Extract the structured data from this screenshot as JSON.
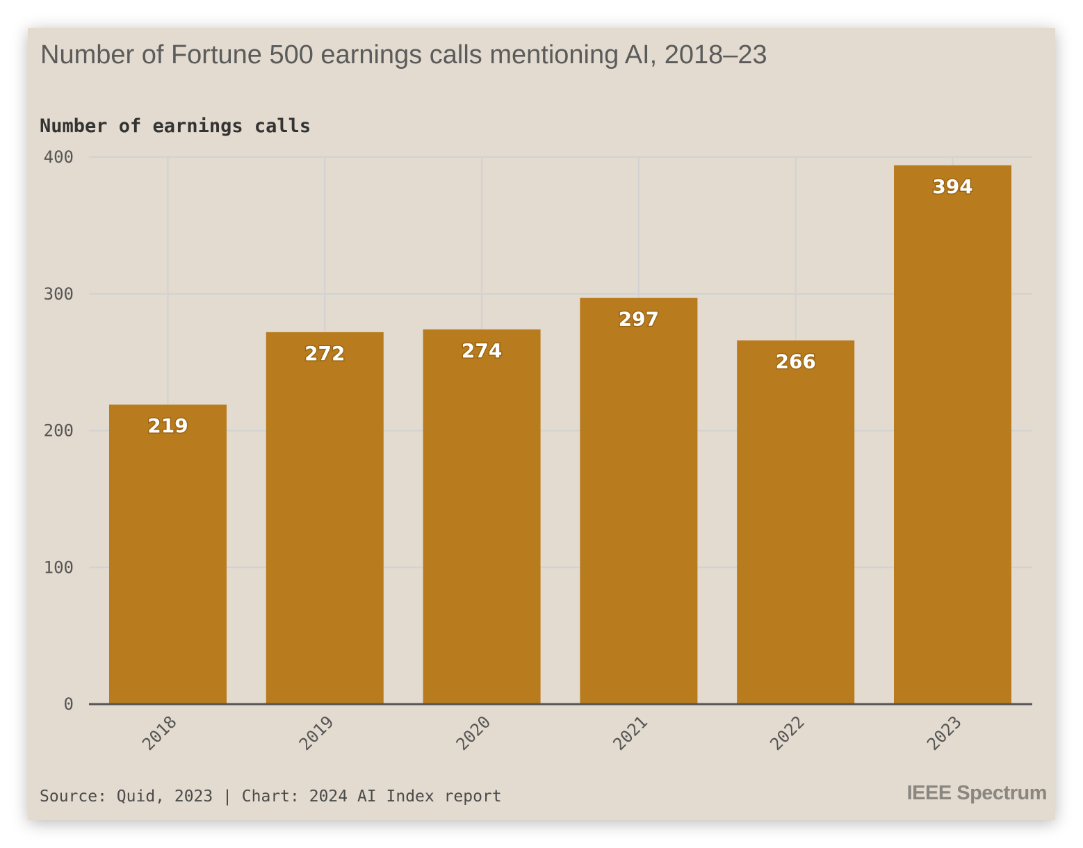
{
  "chart_data": {
    "type": "bar",
    "title": "Number of Fortune 500 earnings calls mentioning AI, 2018–23",
    "ylabel": "Number of earnings calls",
    "xlabel": "",
    "categories": [
      "2018",
      "2019",
      "2020",
      "2021",
      "2022",
      "2023"
    ],
    "values": [
      219,
      272,
      274,
      297,
      266,
      394
    ],
    "ylim": [
      0,
      400
    ],
    "yticks": [
      0,
      100,
      200,
      300,
      400
    ],
    "grid": true,
    "bar_color": "#b87c1f",
    "grid_color": "#d2d2d2",
    "background_color": "#e3dbcf"
  },
  "footer": {
    "source": "Source: Quid, 2023 | Chart: 2024 AI Index report",
    "logo": "IEEE Spectrum"
  }
}
